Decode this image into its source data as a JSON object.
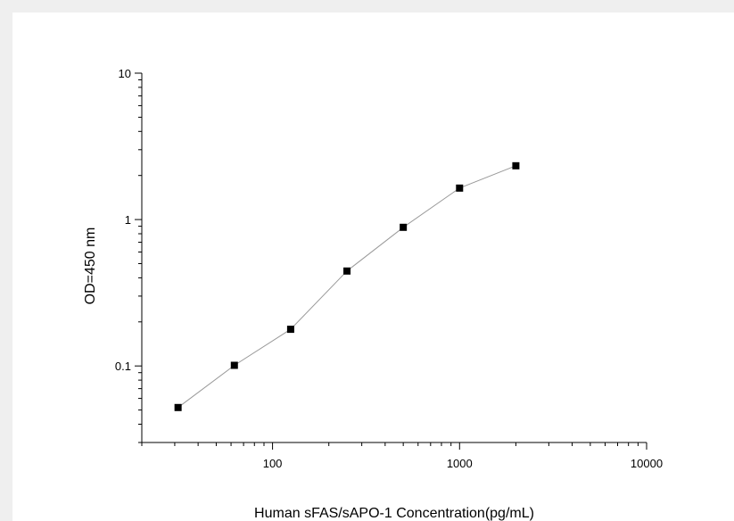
{
  "chart_data": {
    "type": "line",
    "title": "",
    "xlabel": "Human sFAS/sAPO-1 Concentration(pg/mL)",
    "ylabel": "OD=450 nm",
    "x_scale": "log",
    "y_scale": "log",
    "xlim": [
      20,
      10000
    ],
    "ylim": [
      0.03,
      10
    ],
    "x_ticks": [
      {
        "value": 100,
        "label": "100"
      },
      {
        "value": 1000,
        "label": "1000"
      },
      {
        "value": 10000,
        "label": "10000"
      }
    ],
    "y_ticks": [
      {
        "value": 0.1,
        "label": "0.1"
      },
      {
        "value": 1,
        "label": "1"
      },
      {
        "value": 10,
        "label": "10"
      }
    ],
    "grid": false,
    "marker": "square",
    "colors": {
      "line": "#999999",
      "marker": "#000000",
      "axis": "#000000"
    },
    "series": [
      {
        "x": [
          31.25,
          62.5,
          125,
          250,
          500,
          1000,
          2000
        ],
        "y": [
          0.052,
          0.101,
          0.178,
          0.445,
          0.885,
          1.64,
          2.33
        ]
      }
    ]
  }
}
